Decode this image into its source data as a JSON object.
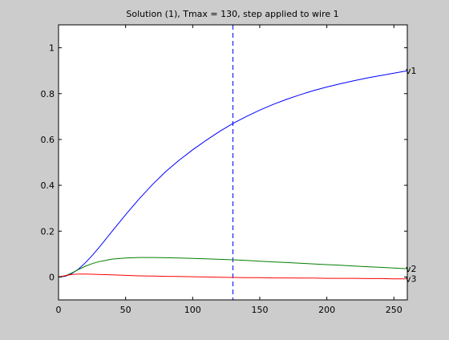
{
  "chart_data": {
    "type": "line",
    "title": "Solution (1), Tmax = 130, step applied to wire 1",
    "xlabel": "",
    "ylabel": "",
    "xlim": [
      0,
      260
    ],
    "ylim": [
      -0.1,
      1.1
    ],
    "xticks": [
      0,
      50,
      100,
      150,
      200,
      250
    ],
    "yticks": [
      0,
      0.2,
      0.4,
      0.6,
      0.8,
      1
    ],
    "grid": false,
    "legend": "none",
    "vline": {
      "x": 130,
      "color": "#0000ff",
      "style": "dashed"
    },
    "series": [
      {
        "name": "v1",
        "color": "#0000ff",
        "x": [
          0,
          5,
          10,
          15,
          20,
          25,
          30,
          40,
          50,
          60,
          70,
          80,
          90,
          100,
          110,
          120,
          130,
          140,
          150,
          160,
          170,
          180,
          190,
          200,
          210,
          220,
          230,
          240,
          250,
          260
        ],
        "y": [
          0,
          0.003,
          0.015,
          0.035,
          0.062,
          0.093,
          0.127,
          0.2,
          0.272,
          0.34,
          0.403,
          0.46,
          0.51,
          0.555,
          0.596,
          0.635,
          0.67,
          0.7,
          0.728,
          0.753,
          0.775,
          0.795,
          0.813,
          0.829,
          0.843,
          0.856,
          0.868,
          0.879,
          0.889,
          0.9
        ]
      },
      {
        "name": "v2",
        "color": "#008000",
        "x": [
          0,
          5,
          10,
          15,
          20,
          25,
          30,
          40,
          50,
          60,
          70,
          80,
          90,
          100,
          110,
          120,
          130,
          140,
          150,
          160,
          170,
          180,
          190,
          200,
          210,
          220,
          230,
          240,
          250,
          260
        ],
        "y": [
          0,
          0.005,
          0.018,
          0.033,
          0.047,
          0.058,
          0.067,
          0.078,
          0.083,
          0.085,
          0.085,
          0.084,
          0.083,
          0.081,
          0.079,
          0.077,
          0.075,
          0.072,
          0.069,
          0.066,
          0.063,
          0.06,
          0.057,
          0.054,
          0.051,
          0.048,
          0.045,
          0.042,
          0.039,
          0.036
        ]
      },
      {
        "name": "v3",
        "color": "#ff0000",
        "x": [
          0,
          5,
          10,
          15,
          20,
          25,
          30,
          40,
          50,
          60,
          70,
          80,
          90,
          100,
          110,
          120,
          130,
          140,
          150,
          160,
          170,
          180,
          190,
          200,
          210,
          220,
          230,
          240,
          250,
          260
        ],
        "y": [
          0,
          0.006,
          0.011,
          0.013,
          0.013,
          0.012,
          0.011,
          0.009,
          0.007,
          0.005,
          0.004,
          0.003,
          0.002,
          0.001,
          0.0,
          -0.001,
          -0.002,
          -0.003,
          -0.003,
          -0.004,
          -0.004,
          -0.005,
          -0.005,
          -0.006,
          -0.006,
          -0.006,
          -0.007,
          -0.007,
          -0.008,
          -0.008
        ]
      }
    ]
  }
}
